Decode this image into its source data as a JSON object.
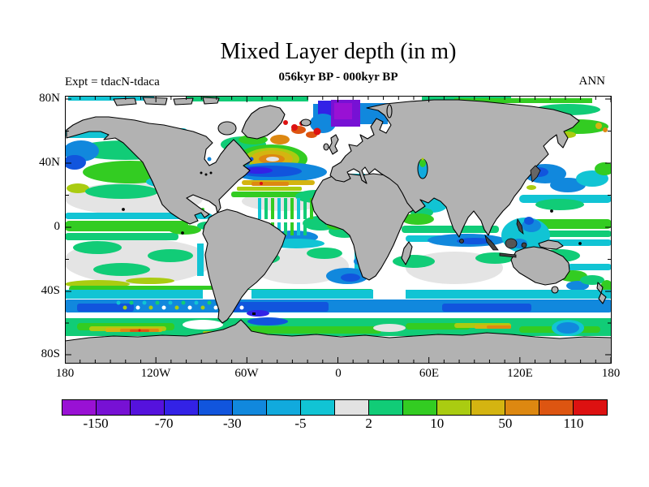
{
  "header": {
    "title": "Mixed Layer depth (in m)",
    "subtitle": "056kyr BP - 000kyr BP",
    "experiment_label": "Expt = tdacN-tdaca",
    "season_label": "ANN"
  },
  "axes": {
    "y_tick_labels": [
      "80N",
      "40N",
      "0",
      "40S",
      "80S"
    ],
    "x_tick_labels": [
      "180",
      "120W",
      "60W",
      "0",
      "60E",
      "120E",
      "180"
    ]
  },
  "colorbar": {
    "bin_colors": [
      "#9911d4",
      "#7711d4",
      "#5512dd",
      "#3322e6",
      "#1155dd",
      "#1188dd",
      "#11aadd",
      "#11c4d4",
      "#e2e2e2",
      "#11cc77",
      "#33cc22",
      "#aacc11",
      "#d4b411",
      "#dd8811",
      "#dd5511",
      "#dd1111"
    ],
    "boundary_labels": [
      "-150",
      "-70",
      "-30",
      "-5",
      "2",
      "10",
      "50",
      "110"
    ]
  },
  "chart_data": {
    "type": "heatmap",
    "title": "Mixed Layer depth (in m)",
    "subtitle": "056kyr BP - 000kyr BP",
    "experiment": "tdacN-tdaca",
    "season": "ANN",
    "units": "m",
    "projection": "global latitude-longitude world map",
    "x_axis": {
      "tick_labels": [
        "180",
        "120W",
        "60W",
        "0",
        "60E",
        "120E",
        "180"
      ],
      "range_deg": [
        -180,
        180
      ]
    },
    "y_axis": {
      "tick_labels": [
        "80N",
        "40N",
        "0",
        "40S",
        "80S"
      ],
      "range_deg": [
        90,
        -90
      ]
    },
    "color_levels_labeled": [
      -150,
      -70,
      -30,
      -5,
      2,
      10,
      50,
      110
    ],
    "n_color_bins": 16,
    "bin_colors": [
      "#9911d4",
      "#7711d4",
      "#5512dd",
      "#3322e6",
      "#1155dd",
      "#1188dd",
      "#11aadd",
      "#11c4d4",
      "#e2e2e2",
      "#11cc77",
      "#33cc22",
      "#aacc11",
      "#d4b411",
      "#dd8811",
      "#dd5511",
      "#dd1111"
    ],
    "land_color": "gray with black coastlines",
    "notable_anomalies": [
      {
        "region": "Nordic/Barents Sea box",
        "value_bin": "below -150 m (purple patch)"
      },
      {
        "region": "Norwegian Sea",
        "value_bin": "-70 to -30 m (blue)"
      },
      {
        "region": "South of Iceland / Irminger Sea",
        "value_bin": "above 110 m (red spots ringed by orange)"
      },
      {
        "region": "Central North Atlantic ~45N",
        "value_bin": "50 to 110 m (yellow-orange swirl)"
      },
      {
        "region": "Subtropical North Atlantic ~35N band",
        "value_bin": "-70 to -30 m (dark blue band)"
      },
      {
        "region": "Equatorial Pacific",
        "value_bin": "10 to 50 m (bright green band)"
      },
      {
        "region": "Kuroshio region off Japan",
        "value_bin": "-30 to -5 m (blue patches)"
      },
      {
        "region": "Southern Ocean ~55S circumpolar band",
        "value_bin": "-30 to -5 m (blue band)"
      },
      {
        "region": "Antarctic coastal band",
        "value_bin": "10 to 110 m (green/yellow/orange streaks)"
      },
      {
        "region": "Subtropical gyre centers",
        "value_bin": "-5 to 2 m (white/light gray)"
      }
    ]
  }
}
